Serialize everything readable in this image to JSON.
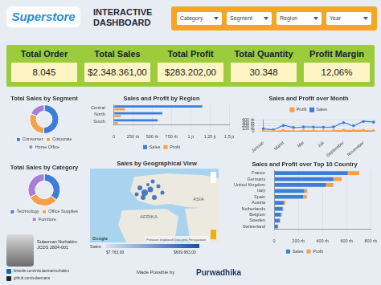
{
  "header": {
    "logo": "Superstore",
    "title": "INTERACTIVE DASHBOARD",
    "filters": [
      "Category",
      "Segment",
      "Region",
      "Year"
    ]
  },
  "kpis": [
    {
      "label": "Total Order",
      "value": "8.045"
    },
    {
      "label": "Total Sales",
      "value": "$2.348.361,00"
    },
    {
      "label": "Total Profit",
      "value": "$283.202,00"
    },
    {
      "label": "Total Quantity",
      "value": "30.348"
    },
    {
      "label": "Profit Margin",
      "value": "12,06%"
    }
  ],
  "chart_data": [
    {
      "type": "doughnut",
      "title": "Total Sales by Segment",
      "categories": [
        "Consumer",
        "Corporate",
        "Home Office"
      ],
      "values": [
        1190000,
        720000,
        438000
      ],
      "colors": [
        "#3b7dd8",
        "#f5a04a",
        "#a77fd6"
      ],
      "legend": "bottom"
    },
    {
      "type": "bar",
      "orientation": "horizontal",
      "title": "Sales and Profit by Region",
      "categories": [
        "Central",
        "North",
        "South"
      ],
      "series": [
        {
          "name": "Sales",
          "color": "#3b7dd8",
          "values": [
            1150000,
            630000,
            570000
          ]
        },
        {
          "name": "Profit",
          "color": "#f5a04a",
          "values": [
            145000,
            90000,
            48000
          ]
        }
      ],
      "xlim": [
        0,
        1500000
      ],
      "xticks": [
        0,
        {
          "value": 250000,
          "label": "250 rb"
        },
        {
          "value": 500000,
          "label": "500 rb"
        },
        {
          "value": 750000,
          "label": "750 rb"
        },
        {
          "value": 1000000,
          "label": "1 jt"
        },
        {
          "value": 1250000,
          "label": "1,25 jt"
        },
        {
          "value": 1500000,
          "label": "1,5 jt"
        }
      ],
      "grid": true,
      "legend": "bottom"
    },
    {
      "type": "line",
      "title": "Sales and Profit over Month",
      "categories": [
        "Januari",
        null,
        "Maret",
        null,
        "Mei",
        null,
        "Juli",
        null,
        "September",
        null,
        "November",
        null
      ],
      "series": [
        {
          "name": "Profit",
          "color": "#f5a04a",
          "values": [
            10000,
            10000,
            28000,
            12000,
            23000,
            22000,
            14000,
            21000,
            37000,
            32000,
            35000,
            21000
          ]
        },
        {
          "name": "Sales",
          "color": "#3b7dd8",
          "values": [
            94000,
            60000,
            205000,
            137000,
            155000,
            153000,
            147000,
            159000,
            307000,
            200000,
            352000,
            325000
          ]
        }
      ],
      "ylim": [
        0,
        400000
      ],
      "yticks": [
        0,
        {
          "value": 100000,
          "label": "100 rb"
        },
        {
          "value": 200000,
          "label": "200 rb"
        },
        {
          "value": 300000,
          "label": "300 rb"
        },
        {
          "value": 400000,
          "label": "400 rb"
        }
      ],
      "grid": true,
      "legend": "top"
    },
    {
      "type": "doughnut",
      "title": "Total Sales by Category",
      "categories": [
        "Technology",
        "Office Supplies",
        "Furniture"
      ],
      "values": [
        850000,
        730000,
        768000
      ],
      "colors": [
        "#3b7dd8",
        "#f5a04a",
        "#a77fd6"
      ],
      "legend": "bottom"
    },
    {
      "type": "bar",
      "orientation": "horizontal",
      "stacked": true,
      "title": "Sales and Profit over Top 10 Country",
      "categories": [
        "France",
        "Germany",
        "United Kingdom",
        "Italy",
        "Spain",
        "Austria",
        "Netherlands",
        "Belgium",
        "Sweden",
        "Switzerland"
      ],
      "series": [
        {
          "name": "Sales",
          "color": "#3b7dd8",
          "values": [
            610000,
            490000,
            430000,
            250000,
            240000,
            80000,
            70000,
            55000,
            45000,
            30000
          ]
        },
        {
          "name": "Profit",
          "color": "#f5a04a",
          "values": [
            95000,
            70000,
            60000,
            25000,
            30000,
            12000,
            5000,
            9000,
            6000,
            4000
          ]
        }
      ],
      "xlim": [
        0,
        800000
      ],
      "xticks": [
        0,
        {
          "value": 200000,
          "label": "200 rb"
        },
        {
          "value": 400000,
          "label": "400 rb"
        },
        {
          "value": 600000,
          "label": "600 rb"
        },
        {
          "value": 800000,
          "label": "800 rb"
        }
      ],
      "grid": true,
      "legend": "bottom"
    }
  ],
  "map": {
    "title": "Sales by Geographical View",
    "labels": [
      "AFRIKA",
      "ASIA"
    ],
    "attribution": [
      "Google",
      "Pintasan keyboard",
      "Data peta",
      "Persyaratan"
    ],
    "legend": {
      "title": "Sales",
      "min_label": "$7.763,00",
      "max_label": "$609.683,00"
    }
  },
  "profile": {
    "name": "Sulaeman Nurhakim",
    "id": "JCDS 2804-001",
    "links": [
      "linkedin.com/in/sulaemannurhakim",
      "github.com/sulaemann"
    ]
  },
  "footer": {
    "text": "Made Possible by",
    "brand": "Purwadhika"
  }
}
